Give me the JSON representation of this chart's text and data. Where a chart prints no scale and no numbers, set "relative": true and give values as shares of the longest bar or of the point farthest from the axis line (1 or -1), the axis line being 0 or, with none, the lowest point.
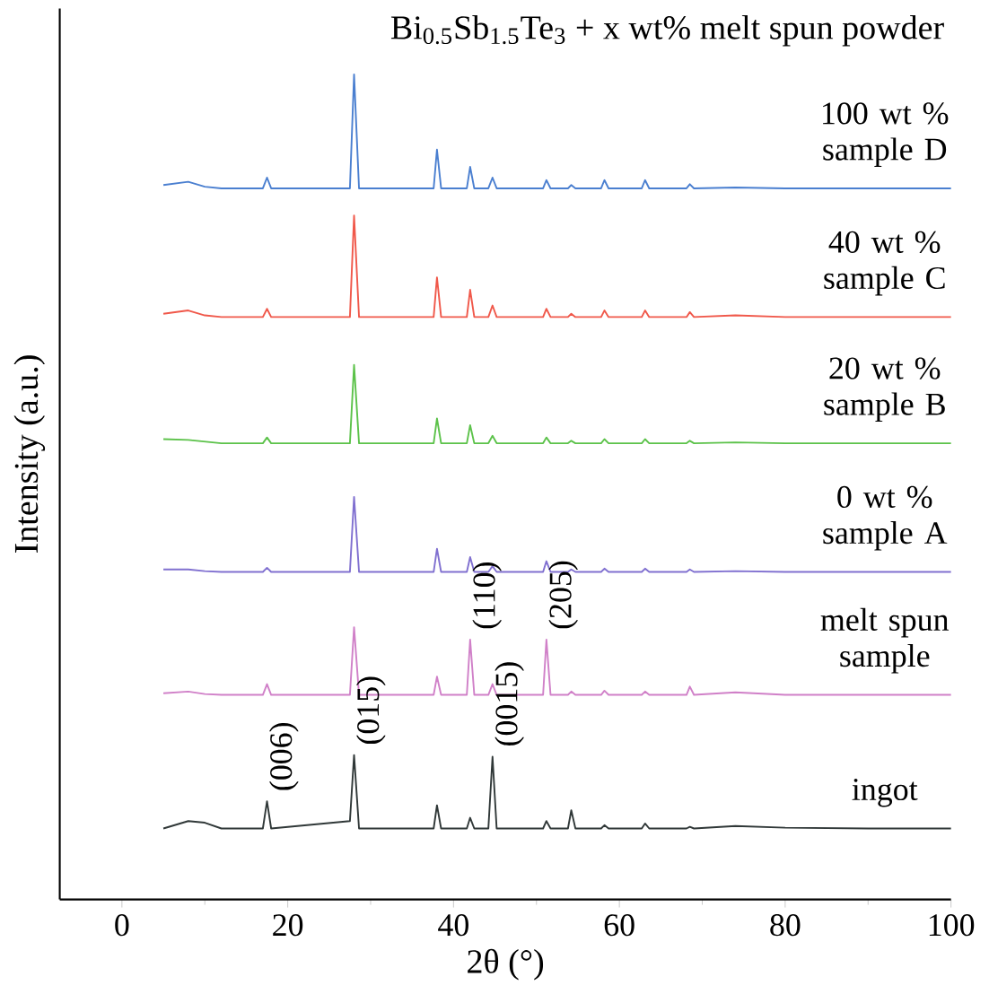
{
  "chart_data": {
    "type": "line",
    "relative": true,
    "title": "Bi$_{0.5}$Sb$_{1.5}$Te$_{3}$ + x wt% melt spun powder",
    "xlabel": "2θ (°)",
    "ylabel": "Intensity (a.u.)",
    "xlim": [
      -7.5,
      100
    ],
    "xticks": [
      0,
      20,
      40,
      60,
      80,
      100
    ],
    "grid": false,
    "x": [
      5,
      8,
      10,
      12,
      17,
      17.5,
      18,
      27.5,
      28,
      28.6,
      37.6,
      38,
      38.5,
      41.6,
      42,
      42.5,
      44.2,
      44.7,
      45.2,
      50.8,
      51.2,
      51.7,
      53.8,
      54.2,
      54.7,
      57.8,
      58.2,
      58.7,
      62.7,
      63.1,
      63.6,
      68.1,
      68.5,
      69,
      74,
      80,
      90,
      100
    ],
    "series": [
      {
        "name": "100 wt % sample D",
        "color": "#4a7fd0",
        "values": [
          0.866,
          0.87,
          0.864,
          0.862,
          0.862,
          0.875,
          0.862,
          0.862,
          1.0,
          0.862,
          0.862,
          0.909,
          0.862,
          0.862,
          0.888,
          0.862,
          0.862,
          0.875,
          0.862,
          0.862,
          0.872,
          0.862,
          0.862,
          0.866,
          0.862,
          0.862,
          0.872,
          0.862,
          0.862,
          0.872,
          0.862,
          0.862,
          0.867,
          0.862,
          0.863,
          0.862,
          0.862,
          0.862
        ]
      },
      {
        "name": "40 wt % sample C",
        "color": "#f0584a",
        "values": [
          0.71,
          0.714,
          0.708,
          0.706,
          0.706,
          0.716,
          0.706,
          0.706,
          0.829,
          0.706,
          0.706,
          0.754,
          0.706,
          0.706,
          0.739,
          0.706,
          0.706,
          0.72,
          0.706,
          0.706,
          0.716,
          0.706,
          0.706,
          0.71,
          0.706,
          0.706,
          0.714,
          0.706,
          0.706,
          0.714,
          0.706,
          0.706,
          0.712,
          0.706,
          0.708,
          0.706,
          0.706,
          0.706
        ]
      },
      {
        "name": "20 wt % sample B",
        "color": "#5cc24a",
        "values": [
          0.558,
          0.557,
          0.555,
          0.553,
          0.553,
          0.56,
          0.553,
          0.553,
          0.648,
          0.553,
          0.553,
          0.583,
          0.553,
          0.553,
          0.575,
          0.553,
          0.553,
          0.562,
          0.553,
          0.553,
          0.56,
          0.553,
          0.553,
          0.556,
          0.553,
          0.553,
          0.558,
          0.553,
          0.553,
          0.558,
          0.553,
          0.553,
          0.556,
          0.553,
          0.554,
          0.553,
          0.553,
          0.553
        ]
      },
      {
        "name": "0 wt % sample A",
        "color": "#8070d0",
        "values": [
          0.4,
          0.4,
          0.398,
          0.397,
          0.397,
          0.402,
          0.397,
          0.397,
          0.488,
          0.397,
          0.397,
          0.425,
          0.397,
          0.397,
          0.415,
          0.397,
          0.397,
          0.404,
          0.397,
          0.397,
          0.41,
          0.397,
          0.397,
          0.4,
          0.397,
          0.397,
          0.401,
          0.397,
          0.397,
          0.401,
          0.397,
          0.397,
          0.4,
          0.397,
          0.398,
          0.397,
          0.397,
          0.397
        ]
      },
      {
        "name": "melt spun sample",
        "color": "#d080c8",
        "values": [
          0.25,
          0.252,
          0.249,
          0.248,
          0.248,
          0.261,
          0.248,
          0.248,
          0.33,
          0.248,
          0.248,
          0.27,
          0.248,
          0.248,
          0.315,
          0.248,
          0.248,
          0.261,
          0.248,
          0.248,
          0.315,
          0.248,
          0.248,
          0.252,
          0.248,
          0.248,
          0.253,
          0.248,
          0.248,
          0.252,
          0.248,
          0.248,
          0.258,
          0.248,
          0.251,
          0.248,
          0.248,
          0.248
        ]
      },
      {
        "name": "ingot",
        "color": "#303838",
        "values": [
          0.086,
          0.095,
          0.093,
          0.086,
          0.086,
          0.119,
          0.086,
          0.095,
          0.175,
          0.086,
          0.086,
          0.114,
          0.086,
          0.086,
          0.099,
          0.086,
          0.086,
          0.173,
          0.086,
          0.086,
          0.095,
          0.086,
          0.086,
          0.108,
          0.086,
          0.086,
          0.09,
          0.086,
          0.086,
          0.092,
          0.086,
          0.086,
          0.088,
          0.086,
          0.089,
          0.087,
          0.086,
          0.086
        ]
      }
    ],
    "annotations": [
      {
        "text": "(006)",
        "x": 17.5,
        "y": 0.119
      },
      {
        "text": "(015)",
        "x": 28,
        "y": 0.175
      },
      {
        "text": "(0015)",
        "x": 44.7,
        "y": 0.173
      },
      {
        "text": "(110)",
        "x": 42,
        "y": 0.315
      },
      {
        "text": "(205)",
        "x": 51.2,
        "y": 0.315
      }
    ]
  }
}
